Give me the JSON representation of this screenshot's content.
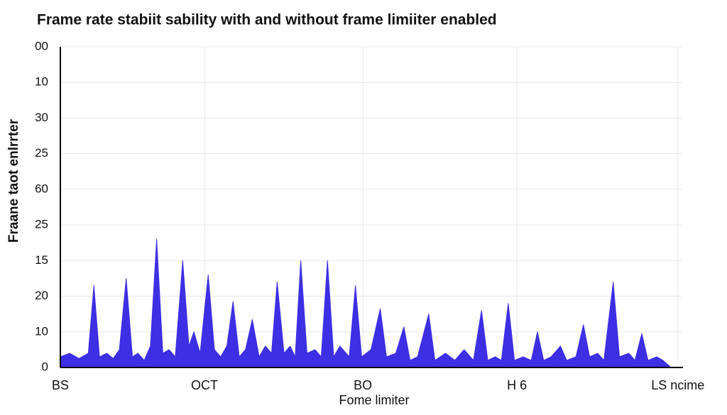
{
  "chart_data": {
    "type": "area",
    "title": "Frame rate stabiit sability with and without frame limiiter enabled",
    "y_label": "Fraane taot enlrrter",
    "x_label": "Fome limiter",
    "x": [
      0,
      1.5,
      3,
      4.5,
      5.4,
      6.3,
      7.5,
      8.5,
      9.5,
      10.6,
      11.6,
      12.5,
      13.5,
      14.5,
      15.5,
      16.5,
      17.5,
      18.5,
      19.7,
      20.7,
      21.5,
      22.5,
      23.8,
      24.8,
      25.8,
      26.8,
      27.8,
      28.8,
      29.8,
      30.9,
      32,
      33,
      34,
      34.9,
      36,
      37,
      37.8,
      38.7,
      39.7,
      41,
      42,
      43,
      44,
      45,
      46.5,
      47.5,
      48.5,
      50,
      51.5,
      52.5,
      54,
      55.3,
      56.3,
      57.5,
      59.3,
      60.3,
      62,
      63.5,
      65,
      66.5,
      67.8,
      68.8,
      70,
      71,
      72.1,
      73.1,
      74.5,
      75.8,
      76.8,
      77.8,
      79,
      80.5,
      81.5,
      83,
      84.2,
      85.2,
      86.5,
      87.5,
      89,
      90,
      91.5,
      92.5,
      93.6,
      94.6,
      96,
      97,
      98.3
    ],
    "series": [
      {
        "color": "#3d2fe3",
        "values": [
          3,
          4,
          2.5,
          4,
          23,
          3,
          4,
          2.5,
          5,
          25,
          3,
          4,
          2,
          6,
          36,
          4,
          5,
          3,
          30,
          6,
          10,
          4,
          26,
          5,
          3,
          6,
          18.5,
          3,
          5,
          13.5,
          3,
          6,
          4,
          24,
          4,
          6,
          3,
          30,
          4,
          5,
          3,
          30,
          3,
          6,
          3,
          23,
          3,
          5,
          16.5,
          3,
          4,
          11.4,
          2,
          3,
          15,
          2,
          4,
          2,
          5,
          2,
          16,
          2,
          3,
          2,
          18,
          2,
          3,
          2,
          10,
          2,
          3,
          6,
          2,
          3,
          12,
          3,
          4,
          2,
          24,
          3,
          4,
          2,
          9.5,
          2,
          3,
          2,
          0
        ]
      }
    ],
    "xlim": [
      0,
      100
    ],
    "xticks": [
      {
        "value": 0,
        "label": "BS"
      },
      {
        "value": 23.2,
        "label": "OCT"
      },
      {
        "value": 48.7,
        "label": "BO"
      },
      {
        "value": 73.5,
        "label": "H 6"
      },
      {
        "value": 99.4,
        "label": "LS ncime"
      }
    ],
    "ylim": [
      0,
      90
    ],
    "yticks": [
      0,
      10,
      {
        "value": 20,
        "label": "20"
      },
      {
        "value": 30,
        "label": "15"
      },
      {
        "value": 40,
        "label": "25"
      },
      {
        "value": 50,
        "label": "60"
      },
      {
        "value": 60,
        "label": "25"
      },
      {
        "value": 70,
        "label": "30"
      },
      {
        "value": 80,
        "label": "10"
      },
      {
        "value": 90,
        "label": "00"
      }
    ],
    "grid": true
  }
}
